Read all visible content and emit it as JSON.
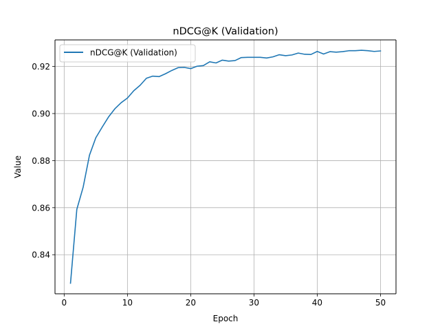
{
  "chart_data": {
    "type": "line",
    "title": "nDCG@K (Validation)",
    "xlabel": "Epoch",
    "ylabel": "Value",
    "xlim": [
      -1.45,
      52.45
    ],
    "ylim": [
      0.8234,
      0.9313
    ],
    "xticks": [
      0,
      10,
      20,
      30,
      40,
      50
    ],
    "yticks": [
      0.84,
      0.86,
      0.88,
      0.9,
      0.92
    ],
    "xtick_labels": [
      "0",
      "10",
      "20",
      "30",
      "40",
      "50"
    ],
    "ytick_labels": [
      "0.84",
      "0.86",
      "0.88",
      "0.90",
      "0.92"
    ],
    "grid": true,
    "legend": {
      "position": "top-left"
    },
    "series": [
      {
        "name": "nDCG@K (Validation)",
        "color": "#1f77b4",
        "x": [
          1,
          2,
          3,
          4,
          5,
          6,
          7,
          8,
          9,
          10,
          11,
          12,
          13,
          14,
          15,
          16,
          17,
          18,
          19,
          20,
          21,
          22,
          23,
          24,
          25,
          26,
          27,
          28,
          29,
          30,
          31,
          32,
          33,
          34,
          35,
          36,
          37,
          38,
          39,
          40,
          41,
          42,
          43,
          44,
          45,
          46,
          47,
          48,
          49,
          50
        ],
        "y": [
          0.8279,
          0.8593,
          0.8687,
          0.8823,
          0.8897,
          0.8942,
          0.8985,
          0.902,
          0.9046,
          0.9066,
          0.9097,
          0.912,
          0.915,
          0.9159,
          0.9157,
          0.9169,
          0.9183,
          0.9195,
          0.9196,
          0.9191,
          0.9201,
          0.9204,
          0.922,
          0.9215,
          0.9227,
          0.9223,
          0.9225,
          0.9238,
          0.9239,
          0.9239,
          0.9239,
          0.9236,
          0.9241,
          0.925,
          0.9246,
          0.9249,
          0.9257,
          0.9252,
          0.9251,
          0.9264,
          0.9253,
          0.9263,
          0.9261,
          0.9263,
          0.9267,
          0.9267,
          0.9269,
          0.9267,
          0.9264,
          0.9266
        ]
      }
    ]
  }
}
